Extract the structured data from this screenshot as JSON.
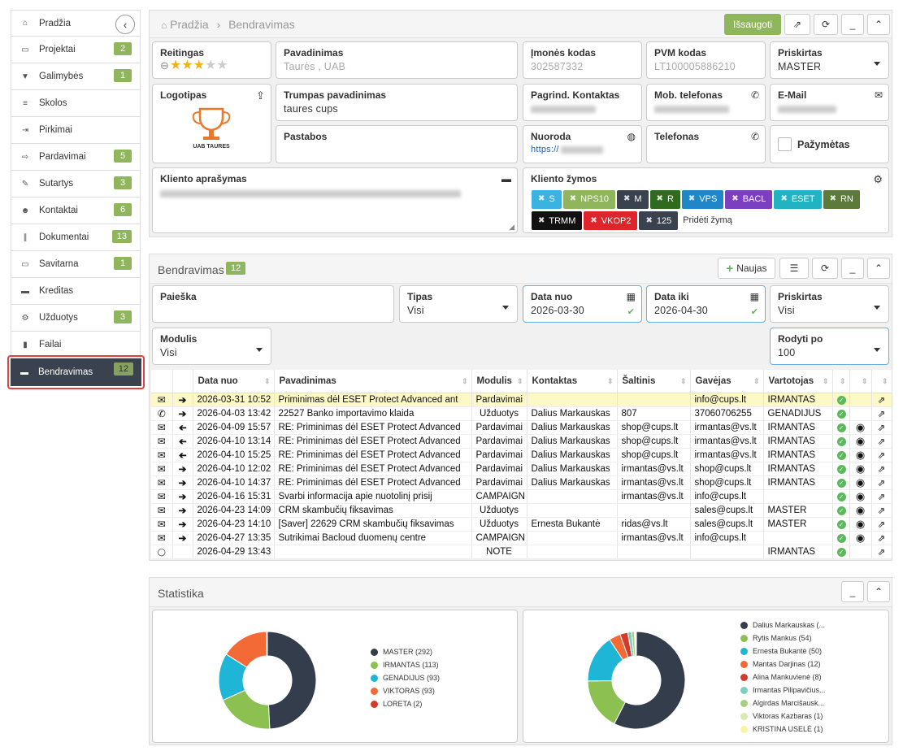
{
  "sidebar": {
    "items": [
      {
        "label": "Pradžia",
        "icon": "home-icon",
        "badge": null
      },
      {
        "label": "Projektai",
        "icon": "folder-icon",
        "badge": "2"
      },
      {
        "label": "Galimybės",
        "icon": "filter-icon",
        "badge": "1"
      },
      {
        "label": "Skolos",
        "icon": "list-icon",
        "badge": null
      },
      {
        "label": "Pirkimai",
        "icon": "sign-in-icon",
        "badge": null
      },
      {
        "label": "Pardavimai",
        "icon": "share-icon",
        "badge": "5"
      },
      {
        "label": "Sutartys",
        "icon": "pencil-icon",
        "badge": "3"
      },
      {
        "label": "Kontaktai",
        "icon": "users-icon",
        "badge": "6"
      },
      {
        "label": "Dokumentai",
        "icon": "paperclip-icon",
        "badge": "13"
      },
      {
        "label": "Savitarna",
        "icon": "desktop-icon",
        "badge": "1"
      },
      {
        "label": "Kreditas",
        "icon": "credit-card-icon",
        "badge": null
      },
      {
        "label": "Užduotys",
        "icon": "cogs-icon",
        "badge": "3"
      },
      {
        "label": "Failai",
        "icon": "file-icon",
        "badge": null
      }
    ],
    "active": {
      "label": "Bendravimas",
      "icon": "comments-icon",
      "badge": "12"
    }
  },
  "header": {
    "breadcrumb_home": "Pradžia",
    "breadcrumb_sep": "›",
    "breadcrumb_current": "Bendravimas",
    "save_label": "Išsaugoti",
    "minimize": "_",
    "collapse": "⌃"
  },
  "client": {
    "rating_label": "Reitingas",
    "rating_value": 3,
    "rating_max": 5,
    "name_label": "Pavadinimas",
    "name_value": "Taurės , UAB",
    "code_label": "Įmonės kodas",
    "code_value": "302587332",
    "vat_label": "PVM kodas",
    "vat_value": "LT100005886210",
    "assigned_label": "Priskirtas",
    "assigned_value": "MASTER",
    "logo_label": "Logotipas",
    "logo_text": "UAB TAURES",
    "short_label": "Trumpas pavadinimas",
    "short_value": "taures cups",
    "contact_label": "Pagrind. Kontaktas",
    "mobile_label": "Mob. telefonas",
    "email_label": "E-Mail",
    "notes_label": "Pastabos",
    "link_label": "Nuoroda",
    "link_value": "https://",
    "phone_label": "Telefonas",
    "marked_label": "Pažymėtas",
    "desc_label": "Kliento aprašymas",
    "tags_label": "Kliento žymos",
    "add_tag": "Pridėti žymą",
    "tags": [
      {
        "label": "S",
        "color": "#3bb3e0"
      },
      {
        "label": "NPS10",
        "color": "#8fb55d"
      },
      {
        "label": "M",
        "color": "#3a4250"
      },
      {
        "label": "R",
        "color": "#2e6b1f"
      },
      {
        "label": "VPS",
        "color": "#1f86c8"
      },
      {
        "label": "BACL",
        "color": "#7b3fbf"
      },
      {
        "label": "ESET",
        "color": "#22b3c3"
      },
      {
        "label": "RN",
        "color": "#5d7a3a"
      },
      {
        "label": "TRMM",
        "color": "#111111"
      },
      {
        "label": "VKOP2",
        "color": "#e0242b"
      },
      {
        "label": "125",
        "color": "#3a4250"
      }
    ]
  },
  "comms": {
    "title": "Bendravimas",
    "count": "12",
    "new_label": "Naujas",
    "search_label": "Paieška",
    "type_label": "Tipas",
    "type_value": "Visi",
    "date_from_label": "Data nuo",
    "date_from_value": "2026-03-30",
    "date_to_label": "Data iki",
    "date_to_value": "2026-04-30",
    "assigned_label": "Priskirtas",
    "assigned_value": "Visi",
    "module_label": "Modulis",
    "module_value": "Visi",
    "show_label": "Rodyti po",
    "show_value": "100",
    "columns": [
      "Data nuo",
      "Pavadinimas",
      "Modulis",
      "Kontaktas",
      "Šaltinis",
      "Gavėjas",
      "Vartotojas"
    ],
    "rows": [
      {
        "t": "mail",
        "d": "out",
        "date": "2026-03-31 10:52",
        "name": "Priminimas dėl ESET Protect Advanced ant",
        "mod": "Pardavimai",
        "contact": "",
        "src": "",
        "to": "info@cups.lt",
        "user": "IRMANTAS",
        "eye": false,
        "hl": true
      },
      {
        "t": "phone",
        "d": "out",
        "date": "2026-04-03 13:42",
        "name": "22527 Banko importavimo klaida",
        "mod": "Užduotys",
        "contact": "Dalius Markauskas",
        "src": "807",
        "to": "37060706255",
        "user": "GENADIJUS",
        "eye": false,
        "hl": false
      },
      {
        "t": "mail",
        "d": "in",
        "date": "2026-04-09 15:57",
        "name": "RE: Priminimas dėl ESET Protect Advanced",
        "mod": "Pardavimai",
        "contact": "Dalius Markauskas",
        "src": "shop@cups.lt",
        "to": "irmantas@vs.lt",
        "user": "IRMANTAS",
        "eye": true,
        "hl": false
      },
      {
        "t": "mail",
        "d": "in",
        "date": "2026-04-10 13:14",
        "name": "RE: Priminimas dėl ESET Protect Advanced",
        "mod": "Pardavimai",
        "contact": "Dalius Markauskas",
        "src": "shop@cups.lt",
        "to": "irmantas@vs.lt",
        "user": "IRMANTAS",
        "eye": true,
        "hl": false
      },
      {
        "t": "mail",
        "d": "in",
        "date": "2026-04-10 15:25",
        "name": "RE: Priminimas dėl ESET Protect Advanced",
        "mod": "Pardavimai",
        "contact": "Dalius Markauskas",
        "src": "shop@cups.lt",
        "to": "irmantas@vs.lt",
        "user": "IRMANTAS",
        "eye": true,
        "hl": false
      },
      {
        "t": "mail",
        "d": "out",
        "date": "2026-04-10 12:02",
        "name": "RE: Priminimas dėl ESET Protect Advanced",
        "mod": "Pardavimai",
        "contact": "Dalius Markauskas",
        "src": "irmantas@vs.lt",
        "to": "shop@cups.lt",
        "user": "IRMANTAS",
        "eye": true,
        "hl": false
      },
      {
        "t": "mail",
        "d": "out",
        "date": "2026-04-10 14:37",
        "name": "RE: Priminimas dėl ESET Protect Advanced",
        "mod": "Pardavimai",
        "contact": "Dalius Markauskas",
        "src": "irmantas@vs.lt",
        "to": "shop@cups.lt",
        "user": "IRMANTAS",
        "eye": true,
        "hl": false
      },
      {
        "t": "mail",
        "d": "out",
        "date": "2026-04-16 15:31",
        "name": "Svarbi informacija apie nuotolinį prisij",
        "mod": "CAMPAIGN",
        "contact": "",
        "src": "irmantas@vs.lt",
        "to": "info@cups.lt",
        "user": "",
        "eye": true,
        "hl": false
      },
      {
        "t": "mail",
        "d": "out",
        "date": "2026-04-23 14:09",
        "name": "CRM skambučių fiksavimas",
        "mod": "Užduotys",
        "contact": "",
        "src": "",
        "to": "sales@cups.lt",
        "user": "MASTER",
        "eye": true,
        "hl": false
      },
      {
        "t": "mail",
        "d": "out",
        "date": "2026-04-23 14:10",
        "name": "[Saver] 22629 CRM skambučių fiksavimas",
        "mod": "Užduotys",
        "contact": "Ernesta Bukantė",
        "src": "ridas@vs.lt",
        "to": "sales@cups.lt",
        "user": "MASTER",
        "eye": true,
        "hl": false
      },
      {
        "t": "mail",
        "d": "out",
        "date": "2026-04-27 13:35",
        "name": "Sutrikimai Bacloud duomenų centre",
        "mod": "CAMPAIGN",
        "contact": "",
        "src": "irmantas@vs.lt",
        "to": "info@cups.lt",
        "user": "",
        "eye": true,
        "hl": false
      },
      {
        "t": "note",
        "d": "",
        "date": "2026-04-29 13:43",
        "name": "",
        "mod": "NOTE",
        "contact": "",
        "src": "",
        "to": "",
        "user": "IRMANTAS",
        "eye": false,
        "hl": false
      }
    ]
  },
  "stats": {
    "title": "Statistika"
  },
  "chart_data": [
    {
      "type": "pie",
      "categories": [
        "MASTER (292)",
        "IRMANTAS (113)",
        "GENADIJUS (93)",
        "VIKTORAS (93)",
        "LORETA (2)"
      ],
      "values": [
        292,
        113,
        93,
        93,
        2
      ],
      "colors": [
        "#343d4c",
        "#8cc152",
        "#1fb5d6",
        "#f46a37",
        "#d33a2c"
      ]
    },
    {
      "type": "pie",
      "categories": [
        "Dalius Markauskas (...",
        "Rytis Mankus (54)",
        "Ernesta Bukantė (50)",
        "Mantas Darjinas (12)",
        "Alina Mankuvienė (8)",
        "Irmantas Pilipavičius...",
        "Algirdas Marcišausk...",
        "Viktoras Kazbaras (1)",
        "KRISTINA USELĖ (1)"
      ],
      "values": [
        180,
        54,
        50,
        12,
        8,
        4,
        3,
        1,
        1
      ],
      "colors": [
        "#343d4c",
        "#8cc152",
        "#1fb5d6",
        "#f46a37",
        "#d33a2c",
        "#7ecdc1",
        "#a5d17a",
        "#d8eab0",
        "#fcf3a1"
      ]
    }
  ]
}
